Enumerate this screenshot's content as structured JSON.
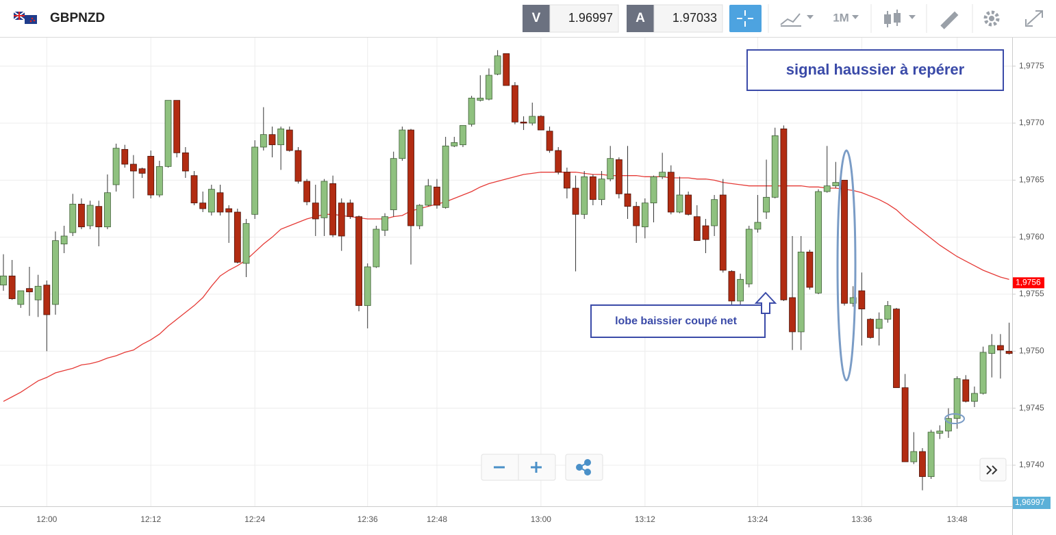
{
  "header": {
    "symbol": "GBPNZD",
    "bid_label": "V",
    "bid": "1.96997",
    "ask_label": "A",
    "ask": "1.97033",
    "timeframe": "1M"
  },
  "chart_data": {
    "type": "candlestick",
    "categories": [
      null,
      null,
      null,
      null,
      null,
      "12:00",
      null,
      null,
      null,
      null,
      null,
      null,
      null,
      null,
      null,
      null,
      null,
      "12:12",
      null,
      null,
      null,
      null,
      null,
      null,
      null,
      null,
      null,
      null,
      null,
      "12:24",
      null,
      null,
      null,
      null,
      null,
      null,
      null,
      null,
      null,
      null,
      null,
      null,
      "12:36",
      null,
      null,
      null,
      null,
      null,
      null,
      null,
      "12:48",
      null,
      null,
      null,
      null,
      null,
      null,
      null,
      null,
      null,
      null,
      null,
      "13:00",
      null,
      null,
      null,
      null,
      null,
      null,
      null,
      null,
      null,
      null,
      null,
      "13:12",
      null,
      null,
      null,
      null,
      null,
      null,
      null,
      null,
      null,
      null,
      null,
      null,
      "13:24",
      null,
      null,
      null,
      null,
      null,
      null,
      null,
      null,
      null,
      null,
      null,
      "13:36",
      null,
      null,
      null,
      null,
      null,
      null,
      null,
      null,
      null,
      null,
      "13:48",
      null,
      null,
      null,
      null,
      null,
      null
    ],
    "open": [
      1.97558,
      1.97566,
      1.97541,
      1.97555,
      1.97545,
      1.97558,
      1.97541,
      1.97594,
      1.97604,
      1.97629,
      1.9761,
      1.97627,
      1.97609,
      1.97646,
      1.97677,
      1.97664,
      1.9766,
      1.97671,
      1.97637,
      1.97662,
      1.9772,
      1.97674,
      1.97654,
      1.9763,
      1.97622,
      1.97639,
      1.97625,
      1.97622,
      1.97577,
      1.9762,
      1.97679,
      1.9769,
      1.97681,
      1.97694,
      1.97676,
      1.97649,
      1.9763,
      1.97617,
      1.97647,
      1.9763,
      1.9763,
      1.97618,
      1.9754,
      1.97574,
      1.97606,
      1.97624,
      1.97669,
      1.97694,
      1.9761,
      1.97628,
      1.97644,
      1.97626,
      1.9768,
      1.97681,
      1.97699,
      1.9772,
      1.97721,
      1.97743,
      1.97761,
      1.97733,
      1.97701,
      1.977,
      1.97706,
      1.97693,
      1.97676,
      1.97657,
      1.97643,
      1.9762,
      1.97653,
      1.97633,
      1.97651,
      1.97668,
      1.97638,
      1.97627,
      1.97609,
      1.9763,
      1.97653,
      1.97657,
      1.97622,
      1.97637,
      1.97618,
      1.9761,
      1.9761,
      1.97637,
      1.9757,
      1.97544,
      1.97559,
      1.97607,
      1.97622,
      1.97635,
      1.97695,
      1.97547,
      1.97517,
      1.97587,
      1.97551,
      1.9764,
      1.97645,
      1.9765,
      1.97542,
      1.97553,
      1.97528,
      1.9752,
      1.97528,
      1.97537,
      1.97468,
      1.97403,
      1.97412,
      1.9739,
      1.97428,
      1.9743,
      1.97441,
      1.97475,
      1.97456,
      1.97463,
      1.97498,
      1.97505,
      1.975
    ],
    "high": [
      1.97585,
      1.9758,
      1.97553,
      1.97574,
      1.97567,
      1.97562,
      1.97605,
      1.9761,
      1.97638,
      1.97634,
      1.97632,
      1.97632,
      1.97655,
      1.97682,
      1.97681,
      1.97672,
      1.97661,
      1.97676,
      1.97667,
      1.9772,
      1.9772,
      1.97679,
      1.97658,
      1.9764,
      1.97646,
      1.97646,
      1.97628,
      1.97625,
      1.97616,
      1.97685,
      1.97714,
      1.97697,
      1.97697,
      1.97697,
      1.97679,
      1.97651,
      1.97646,
      1.97651,
      1.97654,
      1.97634,
      1.97633,
      1.97619,
      1.97577,
      1.9761,
      1.97621,
      1.97675,
      1.97697,
      1.97695,
      1.97629,
      1.97651,
      1.97651,
      1.97688,
      1.97688,
      1.97698,
      1.97724,
      1.97742,
      1.97748,
      1.97764,
      1.97761,
      1.97736,
      1.97706,
      1.97718,
      1.97707,
      1.97697,
      1.97679,
      1.97661,
      1.97654,
      1.97658,
      1.97655,
      1.97658,
      1.9768,
      1.9767,
      1.9768,
      1.97631,
      1.97634,
      1.97654,
      1.97674,
      1.97663,
      1.97653,
      1.9764,
      1.97628,
      1.97616,
      1.97637,
      1.97651,
      1.97571,
      1.97568,
      1.9761,
      1.97637,
      1.97668,
      1.97696,
      1.97698,
      1.97601,
      1.97601,
      1.97589,
      1.97642,
      1.9768,
      1.97666,
      1.9765,
      1.97557,
      1.97569,
      1.97529,
      1.97534,
      1.97544,
      1.97538,
      1.9748,
      1.97429,
      1.97415,
      1.97431,
      1.97435,
      1.9745,
      1.97478,
      1.97479,
      1.97469,
      1.97504,
      1.97515,
      1.97515,
      1.97525
    ],
    "low": [
      1.97553,
      1.97545,
      1.97538,
      1.97531,
      1.9753,
      1.975,
      1.97532,
      1.97586,
      1.97601,
      1.97607,
      1.97607,
      1.97592,
      1.97607,
      1.9764,
      1.97661,
      1.97634,
      1.97652,
      1.97634,
      1.97635,
      1.97661,
      1.9767,
      1.97652,
      1.97628,
      1.97622,
      1.97619,
      1.97619,
      1.97595,
      1.97577,
      1.97565,
      1.97616,
      1.97676,
      1.9767,
      1.97659,
      1.97675,
      1.97647,
      1.97628,
      1.97601,
      1.97601,
      1.976,
      1.97588,
      1.97616,
      1.97535,
      1.9752,
      1.97573,
      1.97601,
      1.97618,
      1.97667,
      1.97576,
      1.97607,
      1.97627,
      1.97625,
      1.97625,
      1.97679,
      1.97679,
      1.97697,
      1.97719,
      1.9772,
      1.97742,
      1.97733,
      1.97699,
      1.97694,
      1.97698,
      1.97694,
      1.97674,
      1.97655,
      1.97634,
      1.9757,
      1.97616,
      1.97628,
      1.97628,
      1.97649,
      1.97634,
      1.97616,
      1.97595,
      1.97599,
      1.97613,
      1.97651,
      1.9762,
      1.97621,
      1.97619,
      1.97597,
      1.97586,
      1.97601,
      1.97569,
      1.97541,
      1.97541,
      1.97556,
      1.97604,
      1.97616,
      1.97634,
      1.97544,
      1.97501,
      1.97501,
      1.97554,
      1.9755,
      1.97639,
      1.97643,
      1.9754,
      1.97539,
      1.97505,
      1.97511,
      1.97505,
      1.97525,
      1.97468,
      1.97403,
      1.97401,
      1.97378,
      1.97388,
      1.97423,
      1.97424,
      1.97432,
      1.97455,
      1.97451,
      1.97462,
      1.97477,
      1.97476,
      1.97497
    ],
    "close": [
      1.97566,
      1.97546,
      1.97553,
      1.97552,
      1.97557,
      1.97532,
      1.97597,
      1.97601,
      1.97629,
      1.97609,
      1.97628,
      1.97609,
      1.97639,
      1.97678,
      1.97664,
      1.97658,
      1.97656,
      1.97637,
      1.97662,
      1.9772,
      1.97674,
      1.97658,
      1.9763,
      1.97625,
      1.97642,
      1.97622,
      1.97622,
      1.97578,
      1.97612,
      1.97679,
      1.9769,
      1.97681,
      1.97695,
      1.97676,
      1.97649,
      1.97631,
      1.97616,
      1.97649,
      1.97602,
      1.97601,
      1.97618,
      1.9754,
      1.97574,
      1.97607,
      1.97618,
      1.97669,
      1.97694,
      1.9761,
      1.97628,
      1.97645,
      1.97628,
      1.9768,
      1.97683,
      1.97698,
      1.97722,
      1.97722,
      1.97742,
      1.97759,
      1.97733,
      1.97701,
      1.977,
      1.97706,
      1.97694,
      1.97676,
      1.97657,
      1.97643,
      1.9762,
      1.97653,
      1.97633,
      1.97651,
      1.97669,
      1.97638,
      1.97627,
      1.9761,
      1.9763,
      1.97653,
      1.97657,
      1.97622,
      1.97637,
      1.9762,
      1.97597,
      1.97598,
      1.97633,
      1.97571,
      1.97544,
      1.97563,
      1.97607,
      1.97613,
      1.97635,
      1.97689,
      1.97545,
      1.97517,
      1.97587,
      1.97556,
      1.9764,
      1.97645,
      1.97648,
      1.97542,
      1.97547,
      1.97537,
      1.97512,
      1.97528,
      1.9754,
      1.97468,
      1.97403,
      1.97412,
      1.9739,
      1.97429,
      1.9743,
      1.97441,
      1.97476,
      1.97456,
      1.97463,
      1.97499,
      1.97505,
      1.97501,
      1.97498
    ],
    "up_color": "#8fc17f",
    "down_color": "#b22c12",
    "moving_average": {
      "color": "#e53935",
      "values": [
        1.97456,
        1.9746,
        1.97464,
        1.97469,
        1.97474,
        1.97477,
        1.97481,
        1.97483,
        1.97485,
        1.97488,
        1.97489,
        1.97491,
        1.97494,
        1.97496,
        1.97499,
        1.97501,
        1.97506,
        1.9751,
        1.97515,
        1.97522,
        1.97528,
        1.97534,
        1.9754,
        1.97547,
        1.97557,
        1.97566,
        1.97571,
        1.97575,
        1.9758,
        1.97587,
        1.97594,
        1.976,
        1.97607,
        1.9761,
        1.97613,
        1.97616,
        1.97618,
        1.9762,
        1.9762,
        1.97619,
        1.97618,
        1.97617,
        1.97616,
        1.97616,
        1.97616,
        1.97618,
        1.97619,
        1.97623,
        1.97625,
        1.97627,
        1.97629,
        1.97631,
        1.97634,
        1.97637,
        1.9764,
        1.97644,
        1.97647,
        1.97649,
        1.97651,
        1.97653,
        1.97655,
        1.97656,
        1.97657,
        1.97657,
        1.97657,
        1.97657,
        1.97657,
        1.97656,
        1.97655,
        1.97655,
        1.97654,
        1.97654,
        1.97654,
        1.97654,
        1.97653,
        1.97653,
        1.97653,
        1.97652,
        1.97652,
        1.97652,
        1.97651,
        1.97651,
        1.9765,
        1.97648,
        1.97647,
        1.97646,
        1.97645,
        1.97645,
        1.97645,
        1.97645,
        1.97645,
        1.97645,
        1.97645,
        1.97644,
        1.97644,
        1.97643,
        1.97643,
        1.97642,
        1.97641,
        1.97639,
        1.97636,
        1.97633,
        1.97629,
        1.97624,
        1.97617,
        1.97611,
        1.97605,
        1.97599,
        1.97593,
        1.97588,
        1.97583,
        1.97579,
        1.97575,
        1.97571,
        1.97568,
        1.97565,
        1.97563
      ]
    },
    "ma_tag": {
      "value": 1.9756,
      "label": "1,9756",
      "color": "#ff0000"
    },
    "price_tag": {
      "label": "1,96997",
      "color": "#5bb0d8"
    },
    "ylim": [
      1.97364,
      1.97775
    ],
    "yticks": [
      {
        "value": 1.974,
        "label": "1,9740"
      },
      {
        "value": 1.9745,
        "label": "1,9745"
      },
      {
        "value": 1.975,
        "label": "1,9750"
      },
      {
        "value": 1.9755,
        "label": "1,9755"
      },
      {
        "value": 1.976,
        "label": "1,9760"
      },
      {
        "value": 1.9765,
        "label": "1,9765"
      },
      {
        "value": 1.977,
        "label": "1,9770"
      },
      {
        "value": 1.9775,
        "label": "1,9775"
      }
    ],
    "grid": true,
    "annotations": [
      "signal haussier à repérer",
      "lobe baissier coupé net"
    ]
  }
}
